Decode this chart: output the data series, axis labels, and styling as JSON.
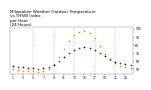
{
  "title": "Milwaukee Weather Outdoor Temperature\nvs THSW Index\nper Hour\n(24 Hours)",
  "title_fontsize": 3.0,
  "hours": [
    0,
    1,
    2,
    3,
    4,
    5,
    6,
    7,
    8,
    9,
    10,
    11,
    12,
    13,
    14,
    15,
    16,
    17,
    18,
    19,
    20,
    21,
    22,
    23
  ],
  "temp": [
    54,
    53,
    52,
    51,
    51,
    50,
    51,
    52,
    55,
    60,
    65,
    70,
    74,
    76,
    77,
    76,
    74,
    70,
    66,
    62,
    59,
    57,
    56,
    55
  ],
  "thsw": [
    50,
    49,
    48,
    47,
    47,
    46,
    47,
    50,
    56,
    65,
    75,
    85,
    92,
    96,
    97,
    95,
    88,
    78,
    68,
    61,
    57,
    54,
    52,
    51
  ],
  "temp_color": "#cc0000",
  "thsw_color": "#ff8800",
  "black_color": "#000000",
  "ylim": [
    44,
    102
  ],
  "yticks": [
    50,
    60,
    70,
    80,
    90,
    100
  ],
  "ytick_labels": [
    "50",
    "60",
    "70",
    "80",
    "90",
    "100"
  ],
  "background_color": "#ffffff",
  "grid_color": "#999999",
  "marker_size": 1.5,
  "grid_hours": [
    4,
    8,
    12,
    16,
    20
  ]
}
